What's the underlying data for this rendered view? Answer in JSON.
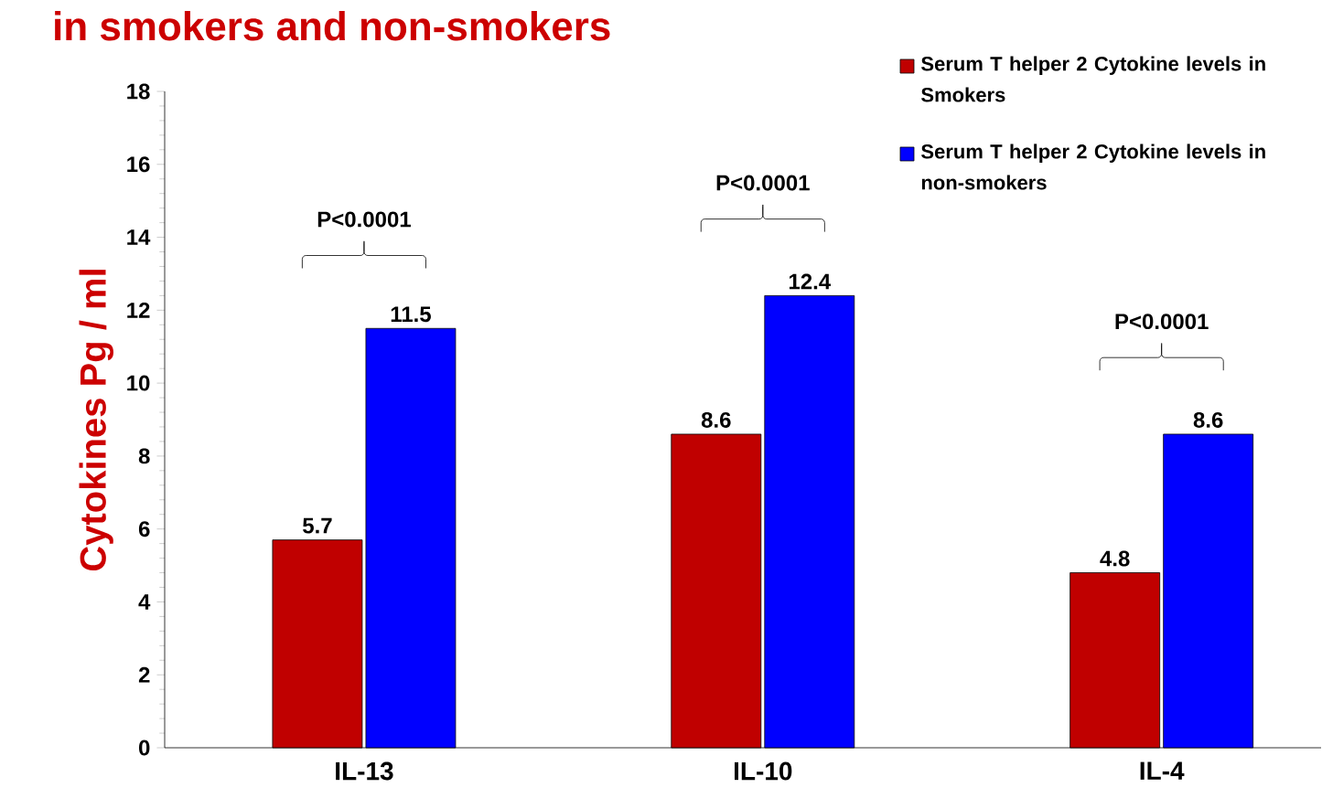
{
  "chart_data": {
    "type": "bar",
    "title": "in smokers and non-smokers",
    "ylabel": "Cytokines  Pg / ml",
    "categories": [
      "IL-13",
      "IL-10",
      "IL-4"
    ],
    "series": [
      {
        "name": "Serum T helper 2 Cytokine levels in Smokers",
        "color": "#c00000",
        "values": [
          5.7,
          8.6,
          4.8
        ]
      },
      {
        "name": "Serum T helper 2 Cytokine levels in non-smokers",
        "color": "#0000ff",
        "values": [
          11.5,
          12.4,
          8.6
        ]
      }
    ],
    "ylim": [
      0,
      18
    ],
    "yticks": [
      0,
      2,
      4,
      6,
      8,
      10,
      12,
      14,
      16,
      18
    ],
    "data_labels": true,
    "legend": "top right",
    "annotations": [
      "P<0.0001",
      "P<0.0001",
      "P<0.0001"
    ]
  }
}
